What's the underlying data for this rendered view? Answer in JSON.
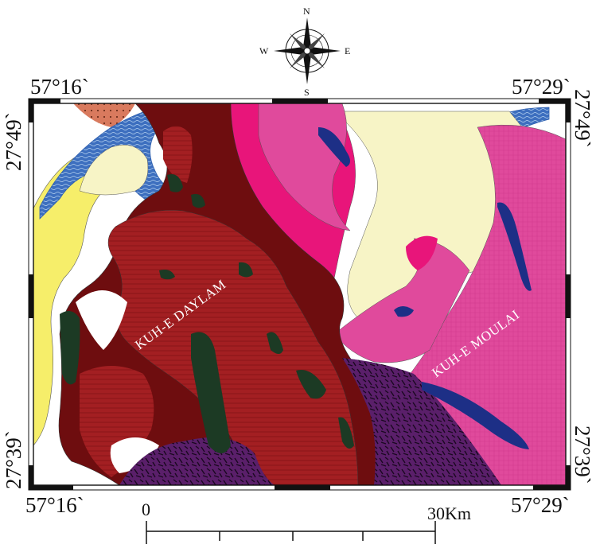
{
  "map": {
    "corners": {
      "top_left_lon": "57°16`",
      "top_right_lon": "57°29`",
      "bottom_left_lon": "57°16`",
      "bottom_right_lon": "57°29`",
      "left_top_lat": "27°49`",
      "left_bottom_lat": "27°39`",
      "right_top_lat": "27°49`",
      "right_bottom_lat": "27°39`"
    },
    "regions": {
      "daylam": "KUH-E DAYLAM",
      "moulai": "KUH-E MOULAI"
    },
    "compass": {
      "n": "N",
      "s": "S",
      "e": "E",
      "w": "W"
    },
    "scale": {
      "start": "0",
      "end": "30Km"
    }
  },
  "colors": {
    "dark_red": "#6e0d0f",
    "red_textured": "#a31f22",
    "magenta": "#e23c9a",
    "pink_hot": "#e8157a",
    "cream": "#f7f4c6",
    "yellow": "#f6ee6a",
    "blue": "#2e5fae",
    "navy": "#1d2f86",
    "dark_green": "#1c3a24",
    "purple": "#5a1f6a",
    "salmon": "#d97a5e"
  }
}
